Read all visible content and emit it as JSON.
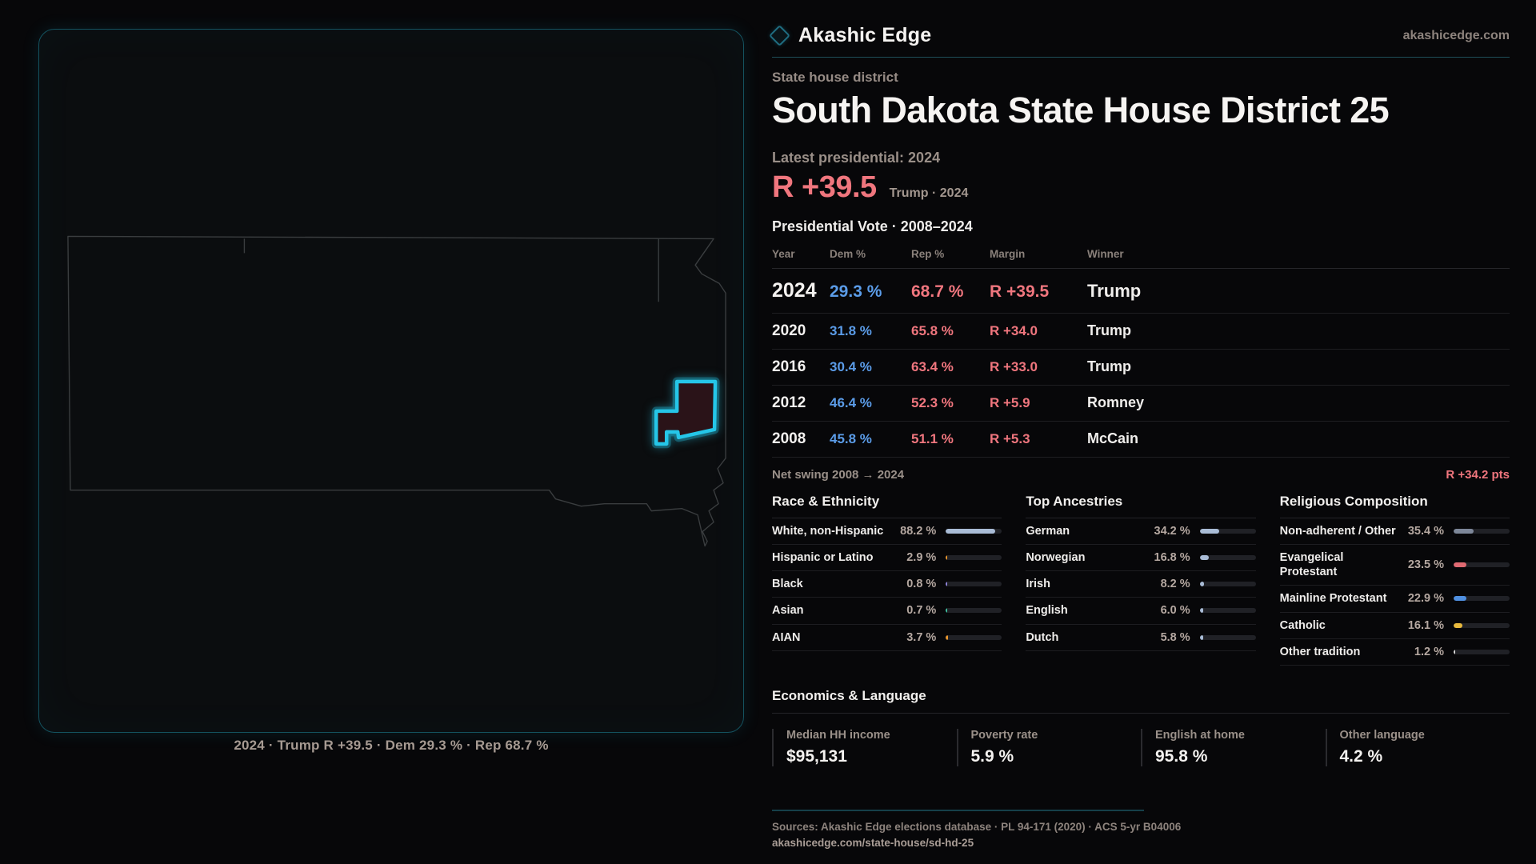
{
  "brand": {
    "name": "Akashic Edge",
    "domain": "akashicedge.com"
  },
  "page": {
    "kicker": "State house district",
    "title": "South Dakota State House District 25",
    "latest_label": "Latest presidential: 2024",
    "headline_margin": "R +39.5",
    "headline_note": "Trump · 2024",
    "table_title": "Presidential Vote · 2008–2024"
  },
  "colors": {
    "dem": "#5b9ce8",
    "rep": "#f0767e",
    "district_highlight": "#25c6e8"
  },
  "map": {
    "caption": "2024 · Trump R +39.5 · Dem 29.3 % · Rep 68.7 %"
  },
  "vote_table": {
    "columns": [
      "Year",
      "Dem %",
      "Rep %",
      "Margin",
      "Winner"
    ],
    "rows": [
      {
        "year": "2024",
        "dem": "29.3 %",
        "rep": "68.7 %",
        "margin": "R +39.5",
        "winner": "Trump"
      },
      {
        "year": "2020",
        "dem": "31.8 %",
        "rep": "65.8 %",
        "margin": "R +34.0",
        "winner": "Trump"
      },
      {
        "year": "2016",
        "dem": "30.4 %",
        "rep": "63.4 %",
        "margin": "R +33.0",
        "winner": "Trump"
      },
      {
        "year": "2012",
        "dem": "46.4 %",
        "rep": "52.3 %",
        "margin": "R +5.9",
        "winner": "Romney"
      },
      {
        "year": "2008",
        "dem": "45.8 %",
        "rep": "51.1 %",
        "margin": "R +5.3",
        "winner": "McCain"
      }
    ],
    "net_swing_label": "Net swing 2008 → 2024",
    "net_swing_value": "R +34.2 pts"
  },
  "demographics": [
    {
      "title": "Race & Ethnicity",
      "rows": [
        {
          "label": "White, non-Hispanic",
          "value": "88.2 %",
          "pct": 88.2,
          "color": "#a9bcd6"
        },
        {
          "label": "Hispanic or Latino",
          "value": "2.9 %",
          "pct": 2.9,
          "color": "#e8962e"
        },
        {
          "label": "Black",
          "value": "0.8 %",
          "pct": 0.8,
          "color": "#8f84d8"
        },
        {
          "label": "Asian",
          "value": "0.7 %",
          "pct": 0.7,
          "color": "#3fbf9f"
        },
        {
          "label": "AIAN",
          "value": "3.7 %",
          "pct": 3.7,
          "color": "#e8962e"
        }
      ]
    },
    {
      "title": "Top Ancestries",
      "rows": [
        {
          "label": "German",
          "value": "34.2 %",
          "pct": 34.2,
          "color": "#a9bcd6"
        },
        {
          "label": "Norwegian",
          "value": "16.8 %",
          "pct": 16.8,
          "color": "#a9bcd6"
        },
        {
          "label": "Irish",
          "value": "8.2 %",
          "pct": 8.2,
          "color": "#a9bcd6"
        },
        {
          "label": "English",
          "value": "6.0 %",
          "pct": 6.0,
          "color": "#a9bcd6"
        },
        {
          "label": "Dutch",
          "value": "5.8 %",
          "pct": 5.8,
          "color": "#a9bcd6"
        }
      ]
    },
    {
      "title": "Religious Composition",
      "rows": [
        {
          "label": "Non-adherent / Other",
          "value": "35.4 %",
          "pct": 35.4,
          "color": "#7d8799"
        },
        {
          "label": "Evangelical Protestant",
          "value": "23.5 %",
          "pct": 23.5,
          "color": "#e06a72"
        },
        {
          "label": "Mainline Protestant",
          "value": "22.9 %",
          "pct": 22.9,
          "color": "#4f8fe0"
        },
        {
          "label": "Catholic",
          "value": "16.1 %",
          "pct": 16.1,
          "color": "#e8b93d"
        },
        {
          "label": "Other tradition",
          "value": "1.2 %",
          "pct": 1.2,
          "color": "#d8d8d8"
        }
      ]
    }
  ],
  "economics": {
    "title": "Economics & Language",
    "stats": [
      {
        "label": "Median HH income",
        "value": "$95,131"
      },
      {
        "label": "Poverty rate",
        "value": "5.9 %"
      },
      {
        "label": "English at home",
        "value": "95.8 %"
      },
      {
        "label": "Other language",
        "value": "4.2 %"
      }
    ]
  },
  "footer": {
    "sources": "Sources: Akashic Edge elections database · PL 94-171 (2020) · ACS 5-yr B04006",
    "permalink": "akashicedge.com/state-house/sd-hd-25"
  }
}
